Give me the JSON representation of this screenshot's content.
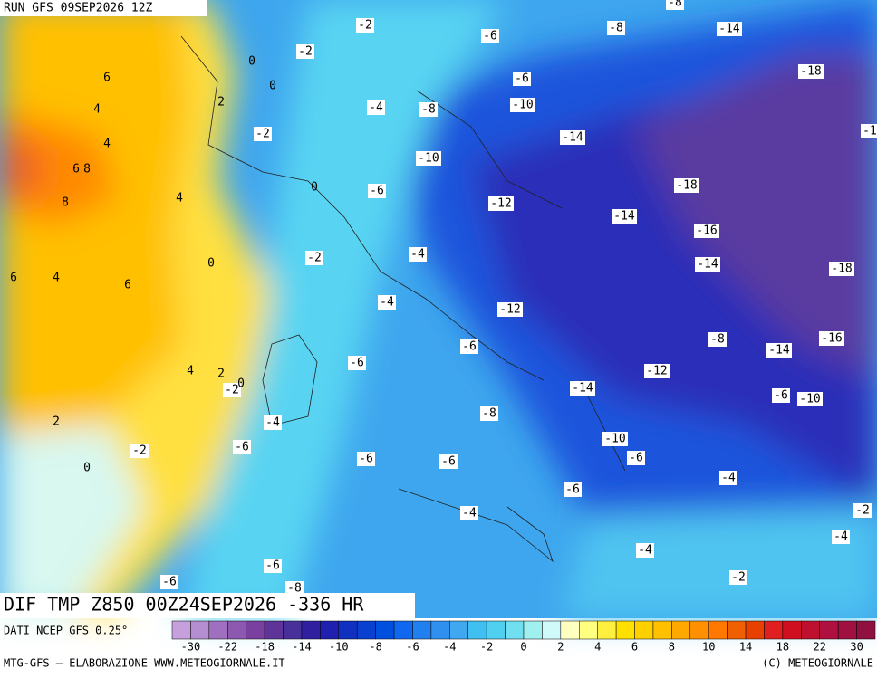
{
  "header": {
    "run": "RUN GFS 09SEP2026 12Z"
  },
  "map": {
    "title": "DIF TMP Z850 00Z24SEP2026 -336 HR",
    "source": "DATI NCEP GFS 0.25°",
    "contour_labels": [
      -8,
      -2,
      -6,
      -8,
      -14,
      6,
      0,
      -2,
      0,
      -6,
      -18,
      4,
      2,
      -4,
      -8,
      -10,
      4,
      -2,
      -14,
      -1,
      6,
      8,
      -10,
      0,
      -6,
      -18,
      8,
      4,
      -12,
      -14,
      -16,
      -4,
      -2,
      0,
      -14,
      -18,
      6,
      4,
      6,
      -4,
      -12,
      -8,
      -16,
      -6,
      -14,
      -6,
      4,
      2,
      -12,
      -2,
      0,
      -14,
      -6,
      -10,
      -8,
      -4,
      2,
      -10,
      -2,
      -6,
      -6,
      -6,
      -6,
      0,
      -4,
      -6,
      -2,
      -4,
      -4,
      -4,
      -6,
      -2,
      -6,
      -8
    ]
  },
  "colorbar": {
    "colors": [
      "#c6a0dc",
      "#b48ed0",
      "#a070c0",
      "#8c58b0",
      "#7a40a0",
      "#5e3498",
      "#48309a",
      "#3020a0",
      "#2020b0",
      "#1030c0",
      "#0a40d0",
      "#0050e0",
      "#1068f0",
      "#2080f0",
      "#3090f0",
      "#40a8f0",
      "#40c0f0",
      "#50d0f0",
      "#70e0f0",
      "#a0f0f0",
      "#d0fafa",
      "#ffffc0",
      "#ffff80",
      "#fff040",
      "#ffe000",
      "#ffd000",
      "#ffc000",
      "#ffa800",
      "#ff9000",
      "#ff7800",
      "#f06000",
      "#e84000",
      "#e02020",
      "#d01020",
      "#c01030",
      "#b01040",
      "#a01040",
      "#901040"
    ],
    "ticks": [
      -30,
      -22,
      -18,
      -14,
      -10,
      -8,
      -6,
      -4,
      -2,
      0,
      2,
      4,
      6,
      8,
      10,
      14,
      18,
      22,
      30
    ]
  },
  "footer": {
    "left": "MTG-GFS — ELABORAZIONE WWW.METEOGIORNALE.IT",
    "right": "(C) METEOGIORNALE"
  }
}
